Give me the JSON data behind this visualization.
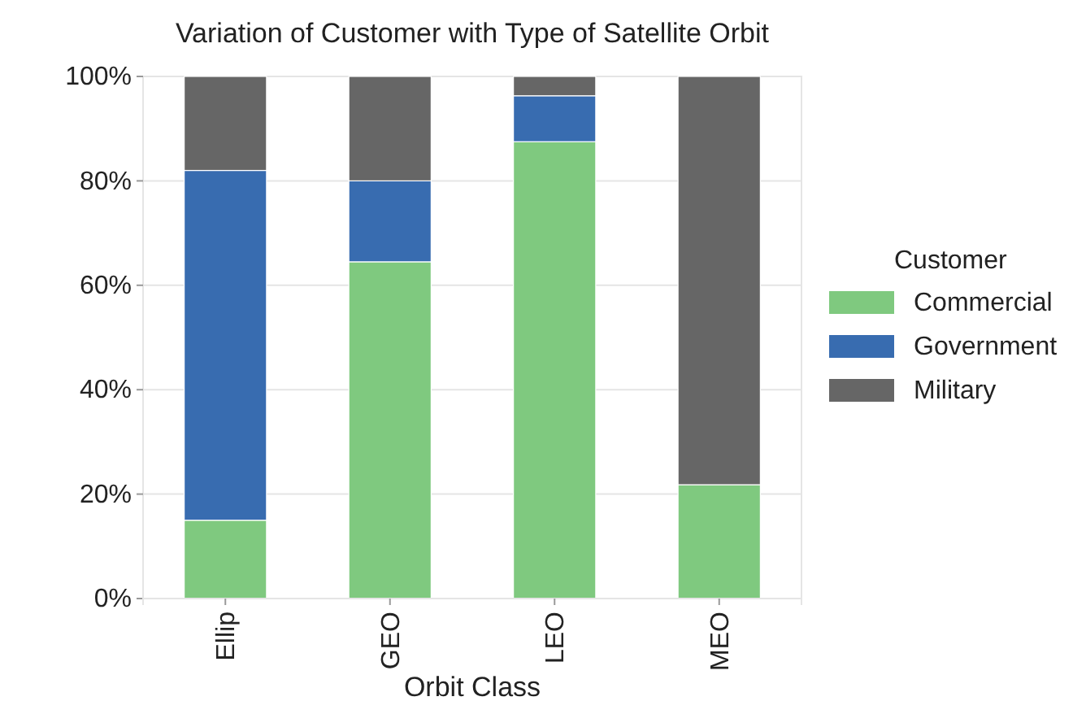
{
  "chart_data": {
    "type": "bar",
    "title": "Variation of Customer with Type of Satellite Orbit",
    "xlabel": "Orbit Class",
    "legend_title": "Customer",
    "categories": [
      "Ellip",
      "GEO",
      "LEO",
      "MEO"
    ],
    "stacked": true,
    "ylim": [
      0,
      100
    ],
    "yticks": [
      {
        "value": 0,
        "label": "0%"
      },
      {
        "value": 20,
        "label": "20%"
      },
      {
        "value": 40,
        "label": "40%"
      },
      {
        "value": 60,
        "label": "60%"
      },
      {
        "value": 80,
        "label": "80%"
      },
      {
        "value": 100,
        "label": "100%"
      }
    ],
    "grid": true,
    "legend": "right",
    "series": [
      {
        "name": "Commercial",
        "color": "#7fc97f",
        "values": [
          15,
          64.5,
          87.5,
          21.8
        ]
      },
      {
        "name": "Government",
        "color": "#386cb0",
        "values": [
          67,
          15.5,
          8.8,
          0
        ]
      },
      {
        "name": "Military",
        "color": "#666666",
        "values": [
          18,
          20,
          3.7,
          78.2
        ]
      }
    ]
  }
}
